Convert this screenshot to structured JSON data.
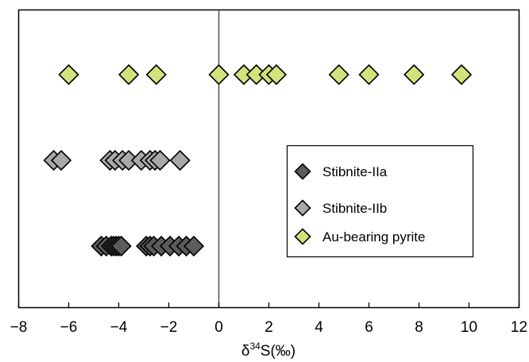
{
  "chart_data": {
    "type": "scatter",
    "xlim": [
      -8,
      12
    ],
    "xticks": [
      -8,
      -6,
      -4,
      -2,
      0,
      2,
      4,
      6,
      8,
      10,
      12
    ],
    "xtick_labels": [
      "−8",
      "−6",
      "−4",
      "−2",
      "0",
      "2",
      "4",
      "6",
      "8",
      "10",
      "12"
    ],
    "xlabel": {
      "prefix": "δ",
      "superscript": "34",
      "suffix": "S(‰)"
    },
    "reference_line_x": 0,
    "grid": false,
    "legend_placement": "middle-right",
    "series": [
      {
        "name": "Stibnite-IIa",
        "color": "#5c5c5c",
        "row": 3,
        "x": [
          -4.7,
          -4.5,
          -4.3,
          -4.2,
          -4.1,
          -4.0,
          -3.9,
          -2.9,
          -2.75,
          -2.6,
          -2.3,
          -1.95,
          -1.6,
          -1.3,
          -1.0
        ]
      },
      {
        "name": "Stibnite-IIb",
        "color": "#a8a8a8",
        "row": 2,
        "x": [
          -6.6,
          -6.3,
          -4.35,
          -4.15,
          -3.85,
          -3.6,
          -3.1,
          -2.75,
          -2.55,
          -2.35,
          -1.55
        ]
      },
      {
        "name": "Au-bearing pyrite",
        "color": "#d4e27b",
        "row": 1,
        "x": [
          -6.0,
          -3.6,
          -2.5,
          0.0,
          1.0,
          1.5,
          2.0,
          2.3,
          4.8,
          6.0,
          7.8,
          9.7
        ]
      }
    ],
    "legend_items": [
      "Stibnite-IIa",
      "Stibnite-IIb",
      "Au-bearing pyrite"
    ]
  }
}
